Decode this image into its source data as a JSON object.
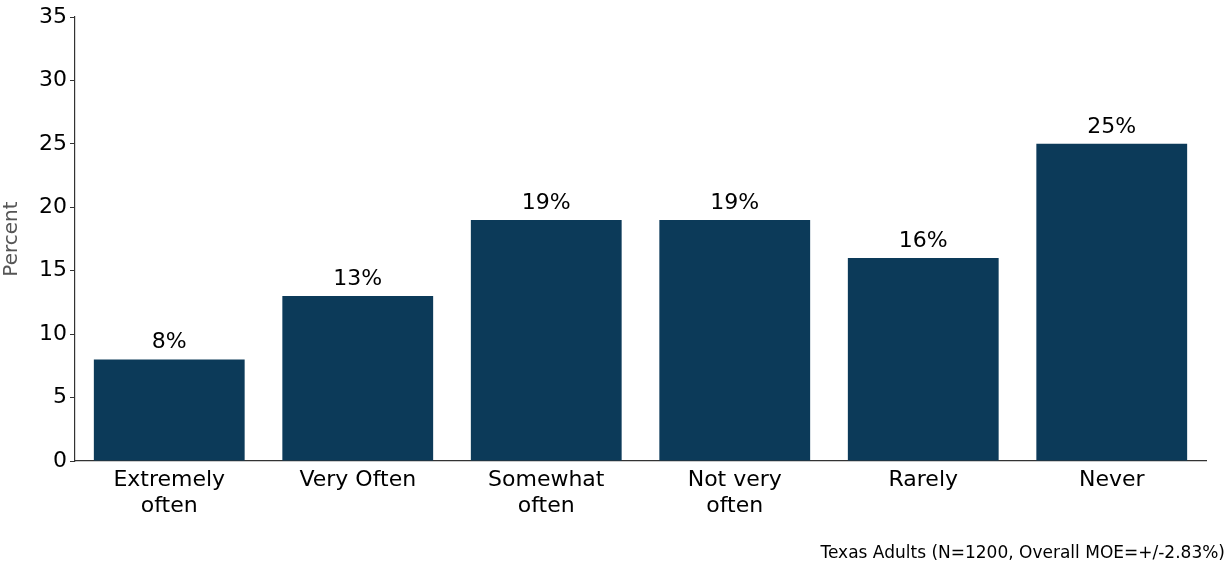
{
  "chart_data": {
    "type": "bar",
    "ylabel": "Percent",
    "categories": [
      "Extremely often",
      "Very Often",
      "Somewhat often",
      "Not very often",
      "Rarely",
      "Never"
    ],
    "values": [
      8,
      13,
      19,
      19,
      16,
      25
    ],
    "value_labels": [
      "8%",
      "13%",
      "19%",
      "19%",
      "16%",
      "25%"
    ],
    "color": "#0c3a59",
    "ylim": [
      0,
      35
    ],
    "yticks": [
      0,
      5,
      10,
      15,
      20,
      25,
      30,
      35
    ],
    "annotations": [
      "Texas Adults (N=1200, Overall MOE=+/-2.83%)"
    ]
  }
}
